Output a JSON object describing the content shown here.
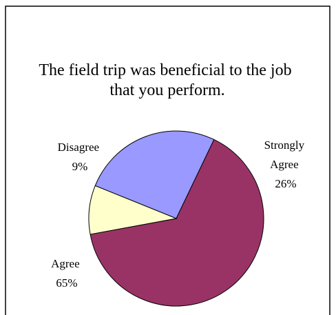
{
  "chart_data": {
    "type": "pie",
    "title": "The field trip was beneficial to the job that you perform.",
    "title_lines": [
      "The field trip was beneficial to the job",
      "that you perform."
    ],
    "slices": [
      {
        "label": "Strongly Agree",
        "label_lines": [
          "Strongly",
          "Agree"
        ],
        "value": 26,
        "display": "26%",
        "color": "#9999ff"
      },
      {
        "label": "Agree",
        "label_lines": [
          "Agree"
        ],
        "value": 65,
        "display": "65%",
        "color": "#993366"
      },
      {
        "label": "Disagree",
        "label_lines": [
          "Disagree"
        ],
        "value": 9,
        "display": "9%",
        "color": "#ffffcc"
      }
    ],
    "legend": "none",
    "grid": false
  }
}
